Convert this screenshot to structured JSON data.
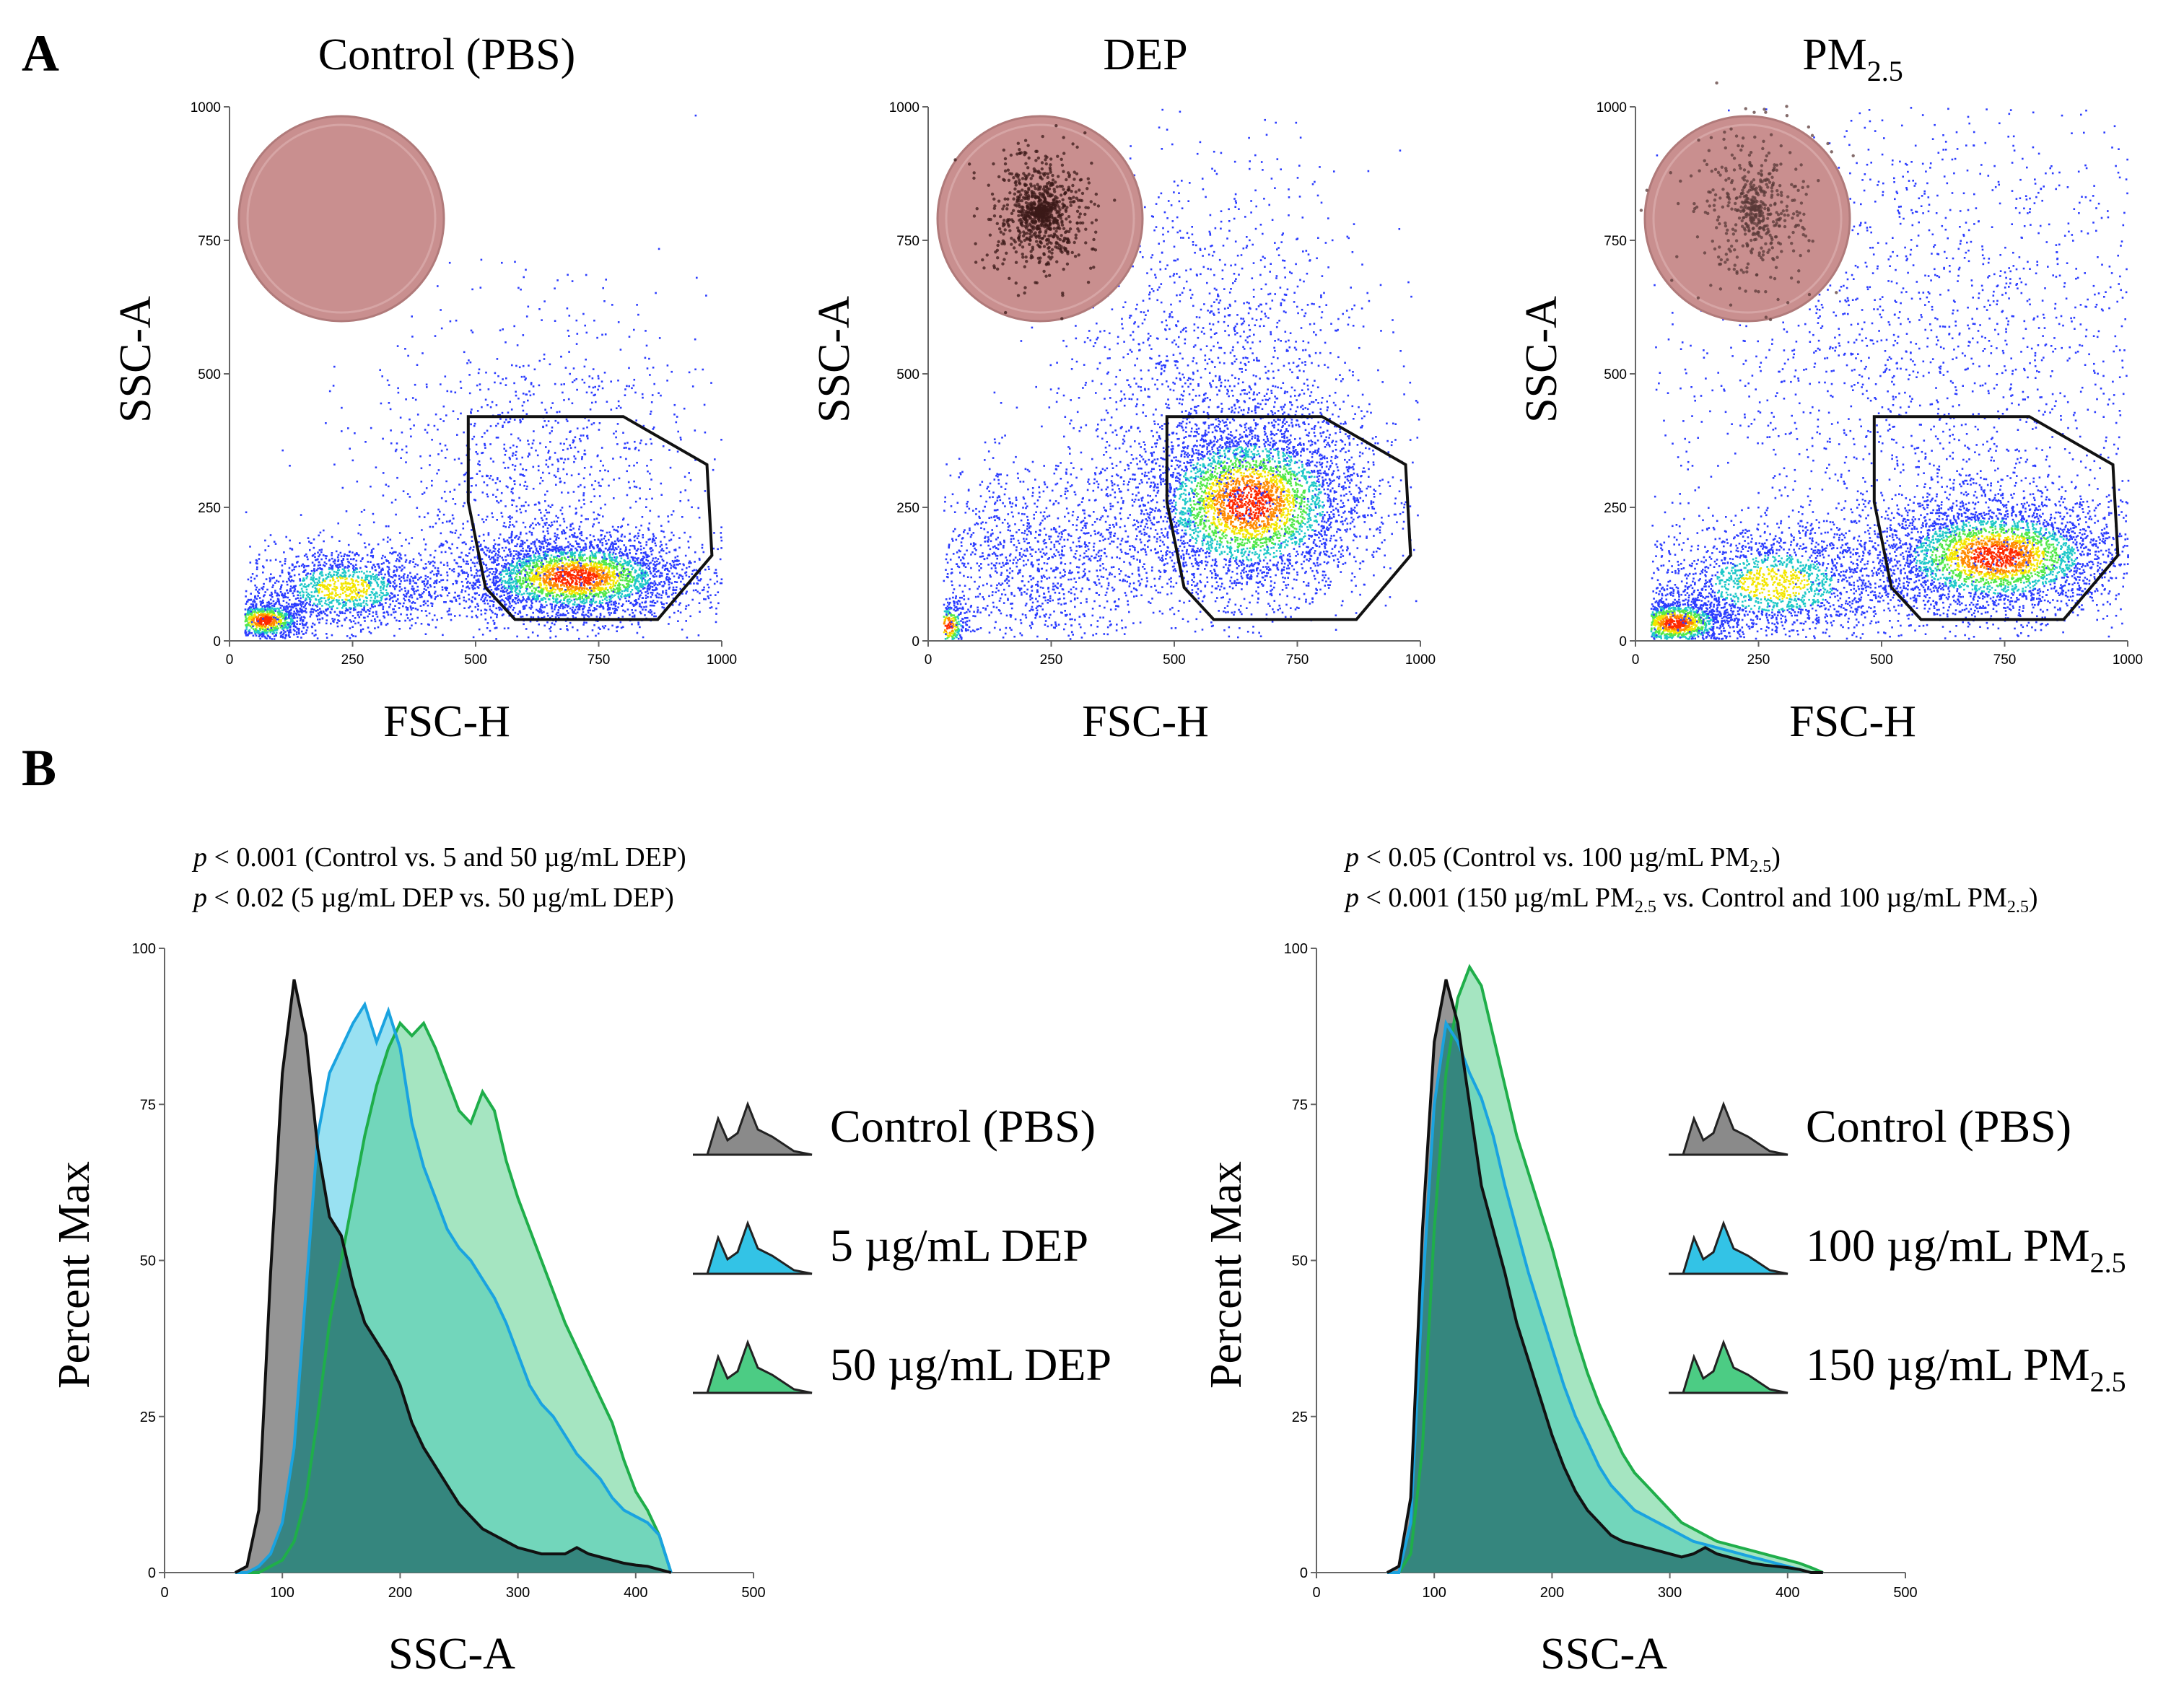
{
  "panels": {
    "a_label": "A",
    "b_label": "B"
  },
  "colors": {
    "control_fill": "#8a8a8a",
    "control_line": "#111111",
    "low_fill": "#33c3e6",
    "low_line": "#1aa3e0",
    "high_fill": "#4ccc84",
    "high_line": "#1fae4a",
    "overlap_fill": "#2f7d78",
    "gate": "#111111",
    "dish": "#c98f8f"
  },
  "chart_data": [
    {
      "type": "scatter",
      "title": "Control (PBS)",
      "title_sub": "",
      "xlabel": "FSC-H",
      "ylabel": "SSC-A",
      "xlim": [
        0,
        1000
      ],
      "ylim": [
        0,
        1000
      ],
      "xticks": [
        "0",
        "250",
        "500",
        "750",
        "1000"
      ],
      "yticks": [
        "0",
        "250",
        "500",
        "750",
        "1000"
      ],
      "inset_image": "culture-dish-clear",
      "gate_polygon": [
        [
          485,
          420
        ],
        [
          800,
          420
        ],
        [
          970,
          330
        ],
        [
          980,
          160
        ],
        [
          870,
          40
        ],
        [
          580,
          40
        ],
        [
          520,
          100
        ],
        [
          485,
          260
        ]
      ],
      "populations": [
        {
          "cx": 70,
          "cy": 40,
          "sx": 45,
          "sy": 20,
          "n": 900,
          "weight": "dense"
        },
        {
          "cx": 230,
          "cy": 100,
          "sx": 100,
          "sy": 40,
          "n": 1400,
          "weight": "medium"
        },
        {
          "cx": 700,
          "cy": 120,
          "sx": 120,
          "sy": 40,
          "n": 3200,
          "weight": "dense"
        },
        {
          "cx": 620,
          "cy": 300,
          "sx": 170,
          "sy": 160,
          "n": 1200,
          "weight": "sparse"
        }
      ]
    },
    {
      "type": "scatter",
      "title": "DEP",
      "title_sub": "",
      "xlabel": "FSC-H",
      "ylabel": "SSC-A",
      "xlim": [
        0,
        1000
      ],
      "ylim": [
        0,
        1000
      ],
      "xticks": [
        "0",
        "250",
        "500",
        "750",
        "1000"
      ],
      "yticks": [
        "0",
        "250",
        "500",
        "750",
        "1000"
      ],
      "inset_image": "culture-dish-dark-particles",
      "gate_polygon": [
        [
          485,
          420
        ],
        [
          800,
          420
        ],
        [
          970,
          330
        ],
        [
          980,
          160
        ],
        [
          870,
          40
        ],
        [
          580,
          40
        ],
        [
          520,
          100
        ],
        [
          485,
          260
        ]
      ],
      "populations": [
        {
          "cx": 40,
          "cy": 30,
          "sx": 20,
          "sy": 25,
          "n": 300,
          "weight": "dense"
        },
        {
          "cx": 200,
          "cy": 150,
          "sx": 130,
          "sy": 90,
          "n": 1300,
          "weight": "sparse"
        },
        {
          "cx": 650,
          "cy": 260,
          "sx": 120,
          "sy": 85,
          "n": 4200,
          "weight": "dense"
        },
        {
          "cx": 580,
          "cy": 500,
          "sx": 160,
          "sy": 200,
          "n": 1500,
          "weight": "sparse"
        }
      ]
    },
    {
      "type": "scatter",
      "title": "PM",
      "title_sub": "2.5",
      "xlabel": "FSC-H",
      "ylabel": "SSC-A",
      "xlim": [
        0,
        1000
      ],
      "ylim": [
        0,
        1000
      ],
      "xticks": [
        "0",
        "250",
        "500",
        "750",
        "1000"
      ],
      "yticks": [
        "0",
        "250",
        "500",
        "750",
        "1000"
      ],
      "inset_image": "culture-dish-grey-particles",
      "gate_polygon": [
        [
          485,
          420
        ],
        [
          800,
          420
        ],
        [
          970,
          330
        ],
        [
          980,
          160
        ],
        [
          870,
          40
        ],
        [
          580,
          40
        ],
        [
          520,
          100
        ],
        [
          485,
          260
        ]
      ],
      "populations": [
        {
          "cx": 80,
          "cy": 35,
          "sx": 60,
          "sy": 25,
          "n": 1500,
          "weight": "dense"
        },
        {
          "cx": 280,
          "cy": 110,
          "sx": 130,
          "sy": 55,
          "n": 1800,
          "weight": "medium"
        },
        {
          "cx": 730,
          "cy": 160,
          "sx": 130,
          "sy": 55,
          "n": 3400,
          "weight": "dense"
        },
        {
          "cx": 600,
          "cy": 520,
          "sx": 280,
          "sy": 280,
          "n": 2200,
          "weight": "sparse"
        }
      ]
    },
    {
      "type": "area",
      "xlabel": "SSC-A",
      "ylabel": "Percent Max",
      "xlim": [
        0,
        500
      ],
      "ylim": [
        0,
        100
      ],
      "xticks": [
        "0",
        "100",
        "200",
        "300",
        "400",
        "500"
      ],
      "yticks": [
        "0",
        "25",
        "50",
        "75",
        "100"
      ],
      "stats": [
        {
          "p": "p",
          "text": " < 0.001 (Control vs. 5 and 50 µg/mL DEP)"
        },
        {
          "p": "p",
          "text": " < 0.02 (5 µg/mL DEP vs. 50 µg/mL DEP)"
        }
      ],
      "x": [
        60,
        70,
        80,
        90,
        100,
        110,
        120,
        130,
        140,
        150,
        160,
        170,
        180,
        190,
        200,
        210,
        220,
        230,
        240,
        250,
        260,
        270,
        280,
        290,
        300,
        310,
        320,
        330,
        340,
        350,
        360,
        370,
        380,
        390,
        400,
        410,
        420,
        430
      ],
      "series": [
        {
          "name": "Control (PBS)",
          "legend_main": "Control (PBS)",
          "legend_sub": "",
          "color_key": "control",
          "values": [
            0,
            1,
            10,
            48,
            80,
            95,
            86,
            68,
            57,
            54,
            46,
            40,
            37,
            34,
            30,
            24,
            20,
            17,
            14,
            11,
            9,
            7,
            6,
            5,
            4,
            3.5,
            3,
            3,
            3,
            4,
            3,
            2.5,
            2,
            1.5,
            1.2,
            1,
            0.5,
            0
          ]
        },
        {
          "name": "5 µg/mL DEP",
          "legend_main": "5 µg/mL DEP",
          "legend_sub": "",
          "color_key": "low",
          "values": [
            0,
            0,
            1,
            3,
            8,
            20,
            45,
            70,
            80,
            84,
            88,
            91,
            85,
            90,
            84,
            72,
            65,
            60,
            55,
            52,
            50,
            47,
            44,
            40,
            35,
            30,
            27,
            25,
            22,
            19,
            17,
            15,
            12,
            10,
            9,
            8,
            6,
            0
          ]
        },
        {
          "name": "50 µg/mL DEP",
          "legend_main": "50 µg/mL DEP",
          "legend_sub": "",
          "color_key": "high",
          "values": [
            0,
            0,
            0,
            1,
            2,
            5,
            12,
            25,
            40,
            50,
            60,
            70,
            78,
            84,
            88,
            86,
            88,
            84,
            79,
            74,
            72,
            77,
            74,
            66,
            60,
            55,
            50,
            45,
            40,
            36,
            32,
            28,
            24,
            18,
            13,
            10,
            6,
            0
          ]
        }
      ]
    },
    {
      "type": "area",
      "xlabel": "SSC-A",
      "ylabel": "Percent Max",
      "xlim": [
        0,
        500
      ],
      "ylim": [
        0,
        100
      ],
      "xticks": [
        "0",
        "100",
        "200",
        "300",
        "400",
        "500"
      ],
      "yticks": [
        "0",
        "25",
        "50",
        "75",
        "100"
      ],
      "stats": [
        {
          "p": "p",
          "text": " < 0.05 (Control vs. 100 µg/mL PM",
          "sub": "2.5",
          "tail": ")"
        },
        {
          "p": "p",
          "text": "  < 0.001 (150 µg/mL PM",
          "sub": "2.5",
          "tail": " vs. Control and 100 µg/mL PM",
          "sub2": "2.5",
          "tail2": ")"
        }
      ],
      "x": [
        60,
        70,
        80,
        90,
        100,
        110,
        120,
        130,
        140,
        150,
        160,
        170,
        180,
        190,
        200,
        210,
        220,
        230,
        240,
        250,
        260,
        270,
        280,
        290,
        300,
        310,
        320,
        330,
        340,
        350,
        360,
        370,
        380,
        390,
        400,
        410,
        420,
        430
      ],
      "series": [
        {
          "name": "Control (PBS)",
          "legend_main": "Control (PBS)",
          "legend_sub": "",
          "color_key": "control",
          "values": [
            0,
            1,
            12,
            55,
            85,
            95,
            88,
            75,
            62,
            55,
            48,
            40,
            34,
            28,
            22,
            17,
            13,
            10,
            8,
            6,
            5,
            4.5,
            4,
            3.5,
            3,
            2.5,
            3,
            4,
            3,
            2.5,
            2,
            1.5,
            1.2,
            1,
            0.8,
            0.5,
            0,
            0
          ]
        },
        {
          "name": "100 µg/mL PM2.5",
          "legend_main": "100 µg/mL PM",
          "legend_sub": "2.5",
          "color_key": "low",
          "values": [
            0,
            0,
            8,
            45,
            75,
            88,
            85,
            80,
            76,
            70,
            62,
            55,
            48,
            42,
            36,
            30,
            25,
            21,
            17,
            14,
            12,
            10,
            9,
            8,
            7,
            6,
            5,
            4.5,
            4,
            3.5,
            3,
            2.5,
            2,
            1.5,
            1,
            0.5,
            0,
            0
          ]
        },
        {
          "name": "150 µg/mL PM2.5",
          "legend_main": "150 µg/mL PM",
          "legend_sub": "2.5",
          "color_key": "high",
          "values": [
            0,
            0,
            3,
            20,
            55,
            80,
            92,
            97,
            94,
            86,
            78,
            70,
            64,
            58,
            52,
            45,
            38,
            32,
            27,
            23,
            19,
            16,
            14,
            12,
            10,
            8,
            7,
            6,
            5,
            4.5,
            4,
            3.5,
            3,
            2.5,
            2,
            1.5,
            0.8,
            0
          ]
        }
      ]
    }
  ]
}
